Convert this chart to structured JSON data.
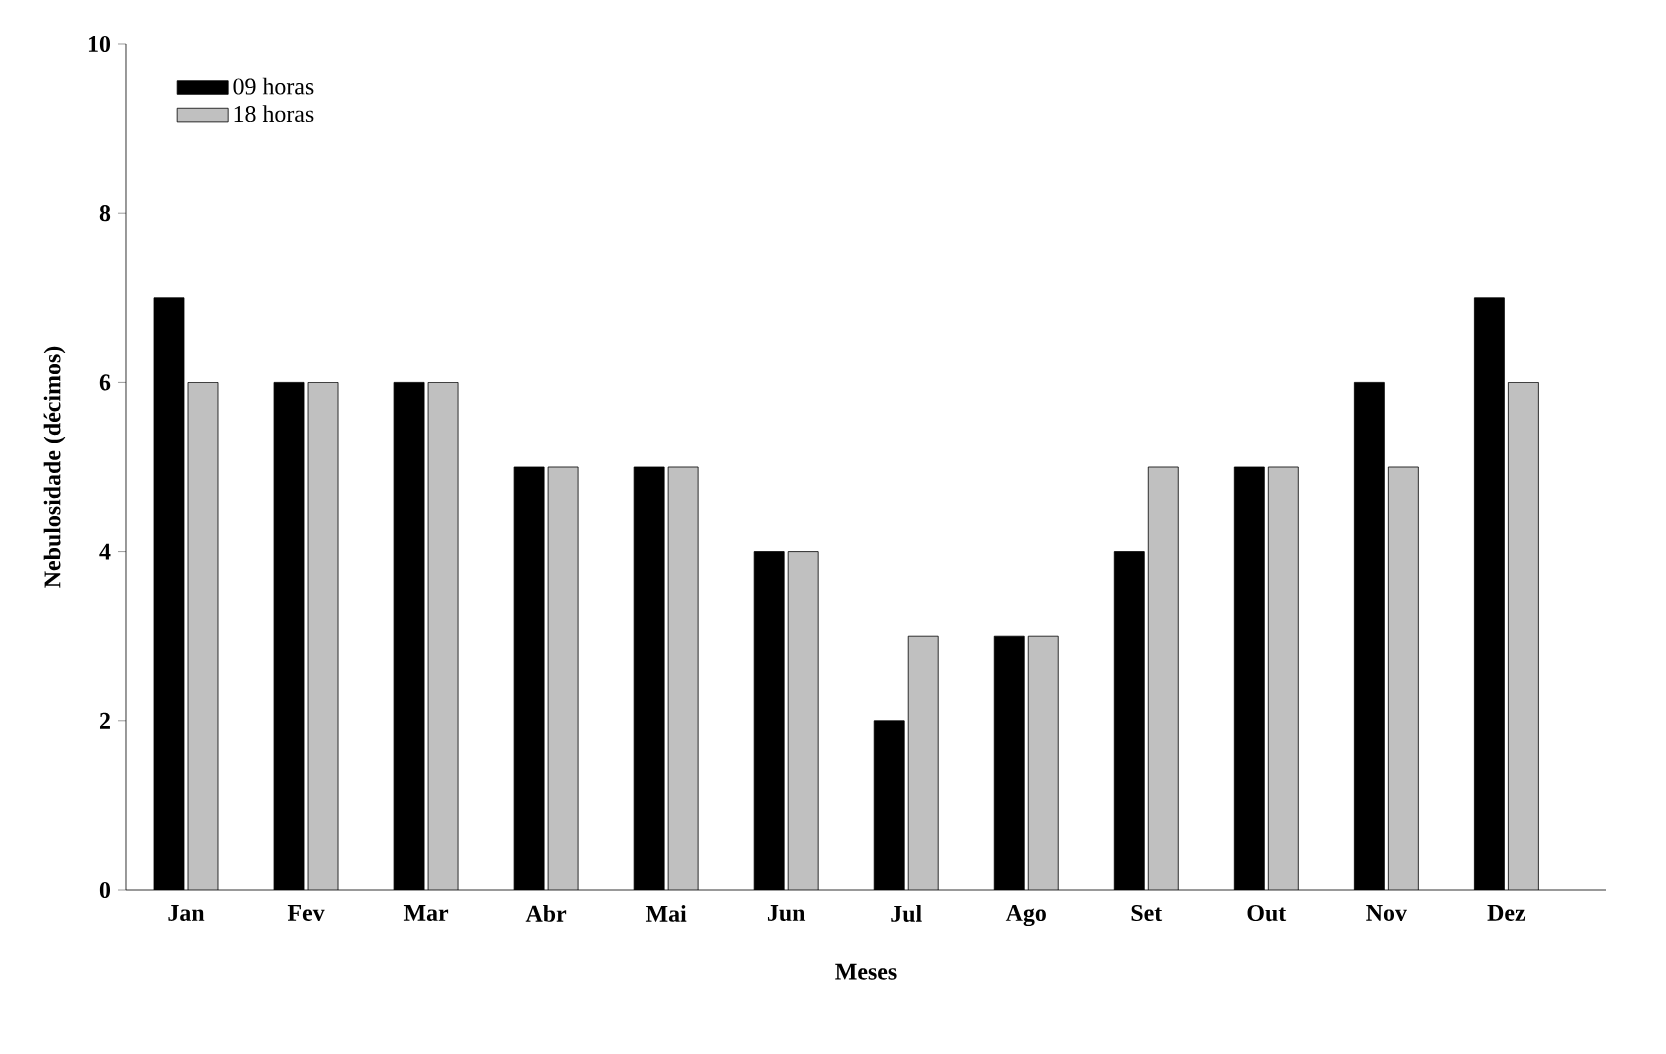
{
  "chart_data": {
    "type": "bar",
    "xlabel": "Meses",
    "ylabel": "Nebulosidade (décimos)",
    "categories": [
      "Jan",
      "Fev",
      "Mar",
      "Abr",
      "Mai",
      "Jun",
      "Jul",
      "Ago",
      "Set",
      "Out",
      "Nov",
      "Dez"
    ],
    "series": [
      {
        "name": "09 horas",
        "color": "#000000",
        "values": [
          7,
          6,
          6,
          5,
          5,
          4,
          2,
          3,
          4,
          5,
          6,
          7
        ]
      },
      {
        "name": "18 horas",
        "color": "#c0c0c0",
        "values": [
          6,
          6,
          6,
          5,
          5,
          4,
          3,
          3,
          5,
          5,
          5,
          6
        ]
      }
    ],
    "ylim": [
      0,
      10
    ],
    "yticks": [
      0,
      2,
      4,
      6,
      8,
      10
    ],
    "legend": "top left",
    "grid": false
  }
}
